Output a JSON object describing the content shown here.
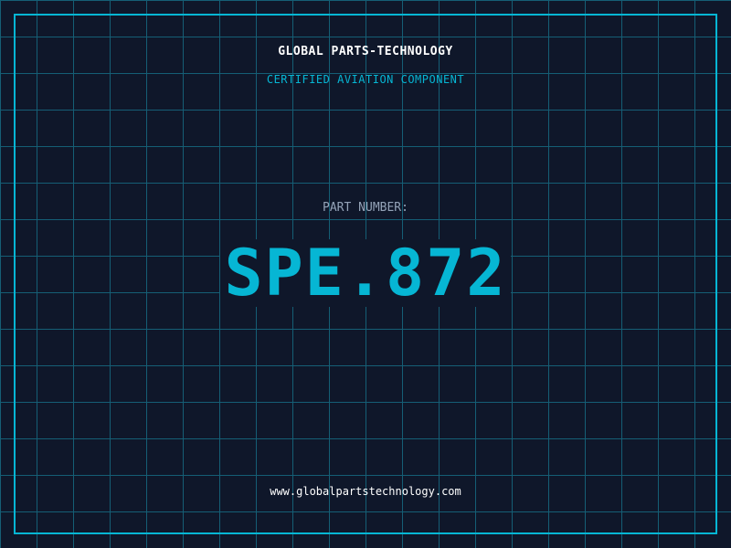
{
  "header": {
    "company": "GLOBAL PARTS-TECHNOLOGY",
    "subtitle": "CERTIFIED AVIATION COMPONENT"
  },
  "part": {
    "label": "PART NUMBER:",
    "number": "SPE.872"
  },
  "footer": {
    "url": "www.globalpartstechnology.com"
  },
  "colors": {
    "background": "#0f172a",
    "accent": "#06b6d4",
    "grid": "#155e75",
    "label": "#94a3b8"
  }
}
